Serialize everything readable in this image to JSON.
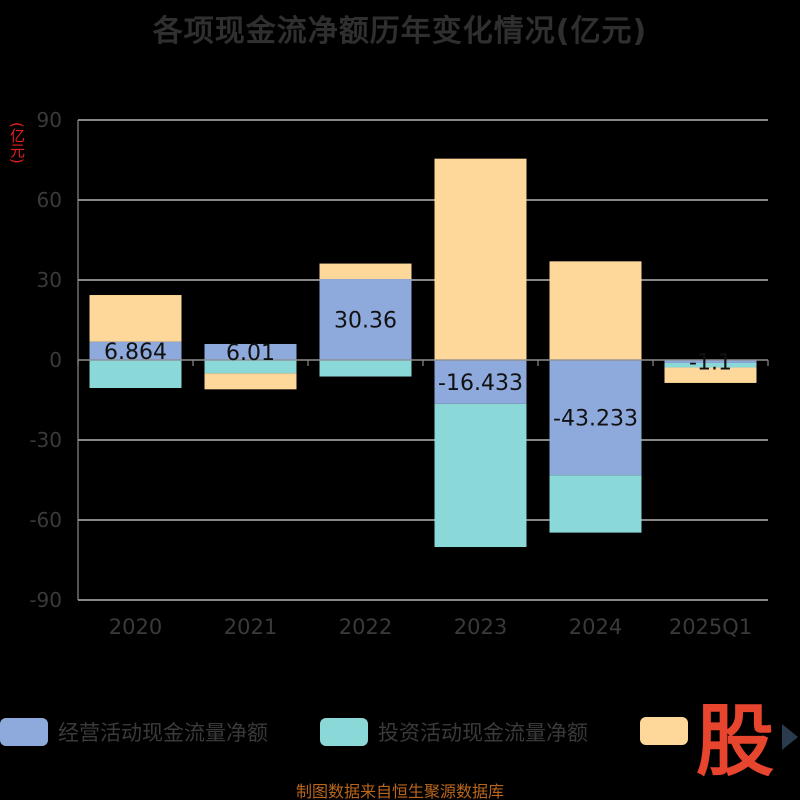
{
  "chart_data": {
    "type": "bar",
    "stacked": true,
    "title": "各项现金流净额历年变化情况(亿元)",
    "ylabel": "(亿元)",
    "categories": [
      "2020",
      "2021",
      "2022",
      "2023",
      "2024",
      "2025Q1"
    ],
    "ylim": [
      -90,
      90
    ],
    "yticks": [
      90,
      60,
      30,
      0,
      -30,
      -60,
      -90
    ],
    "grid": true,
    "legend_position": "bottom",
    "series": [
      {
        "name": "经营活动现金流量净额",
        "color": "#8eaadc",
        "values": [
          6.864,
          6.01,
          30.36,
          -16.433,
          -43.233,
          -1.1
        ],
        "labels": [
          "6.864",
          "6.01",
          "30.36",
          "-16.433",
          "-43.233",
          "-1.1"
        ]
      },
      {
        "name": "投资活动现金流量净额",
        "color": "#8ad8d8",
        "values": [
          -10.5,
          -5.0,
          -6.2,
          -53.7,
          -21.5,
          -1.7
        ],
        "labels": []
      },
      {
        "name": "",
        "color": "#fed89b",
        "values": [
          17.5,
          -6.0,
          5.8,
          75.5,
          37.0,
          -5.8
        ],
        "labels": []
      }
    ]
  },
  "footer": "制图数据来自恒生聚源数据库",
  "logo_text": "股"
}
